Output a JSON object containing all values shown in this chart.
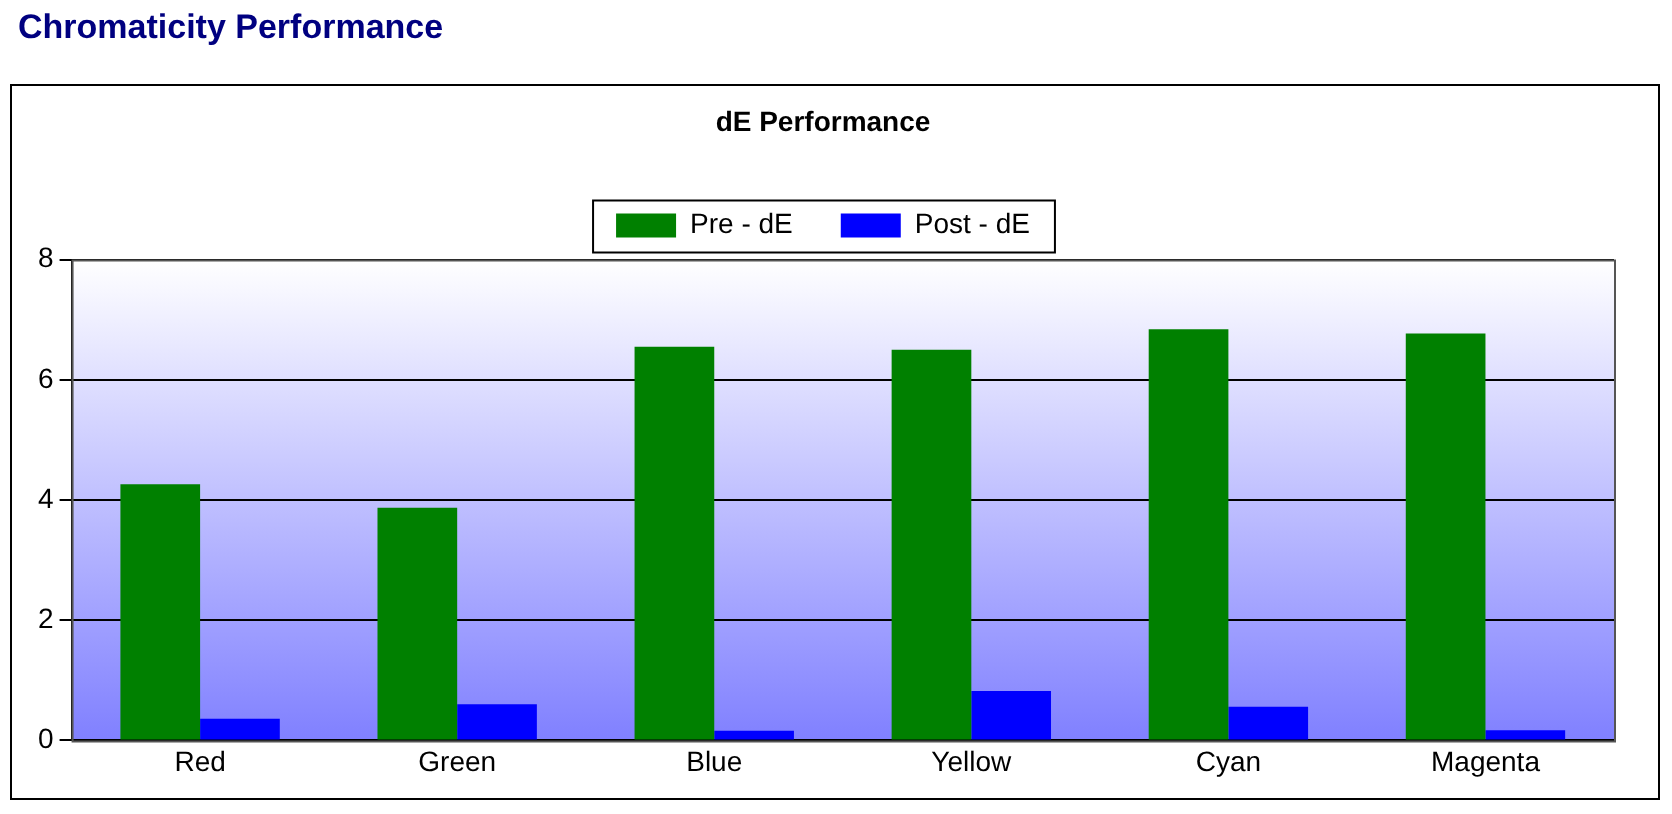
{
  "chart_data": {
    "type": "bar",
    "title": "Chromaticity Performance",
    "subtitle": "dE Performance",
    "categories": [
      "Red",
      "Green",
      "Blue",
      "Yellow",
      "Cyan",
      "Magenta"
    ],
    "series": [
      {
        "name": "Pre - dE",
        "color": "#008000",
        "values": [
          4.26,
          3.87,
          6.55,
          6.5,
          6.84,
          6.77
        ]
      },
      {
        "name": "Post - dE",
        "color": "#0000ff",
        "values": [
          0.36,
          0.6,
          0.16,
          0.82,
          0.56,
          0.17
        ]
      }
    ],
    "ylim": [
      0,
      8
    ],
    "yticks": [
      0,
      2,
      4,
      6,
      8
    ],
    "grid": "y",
    "legend": "top"
  }
}
